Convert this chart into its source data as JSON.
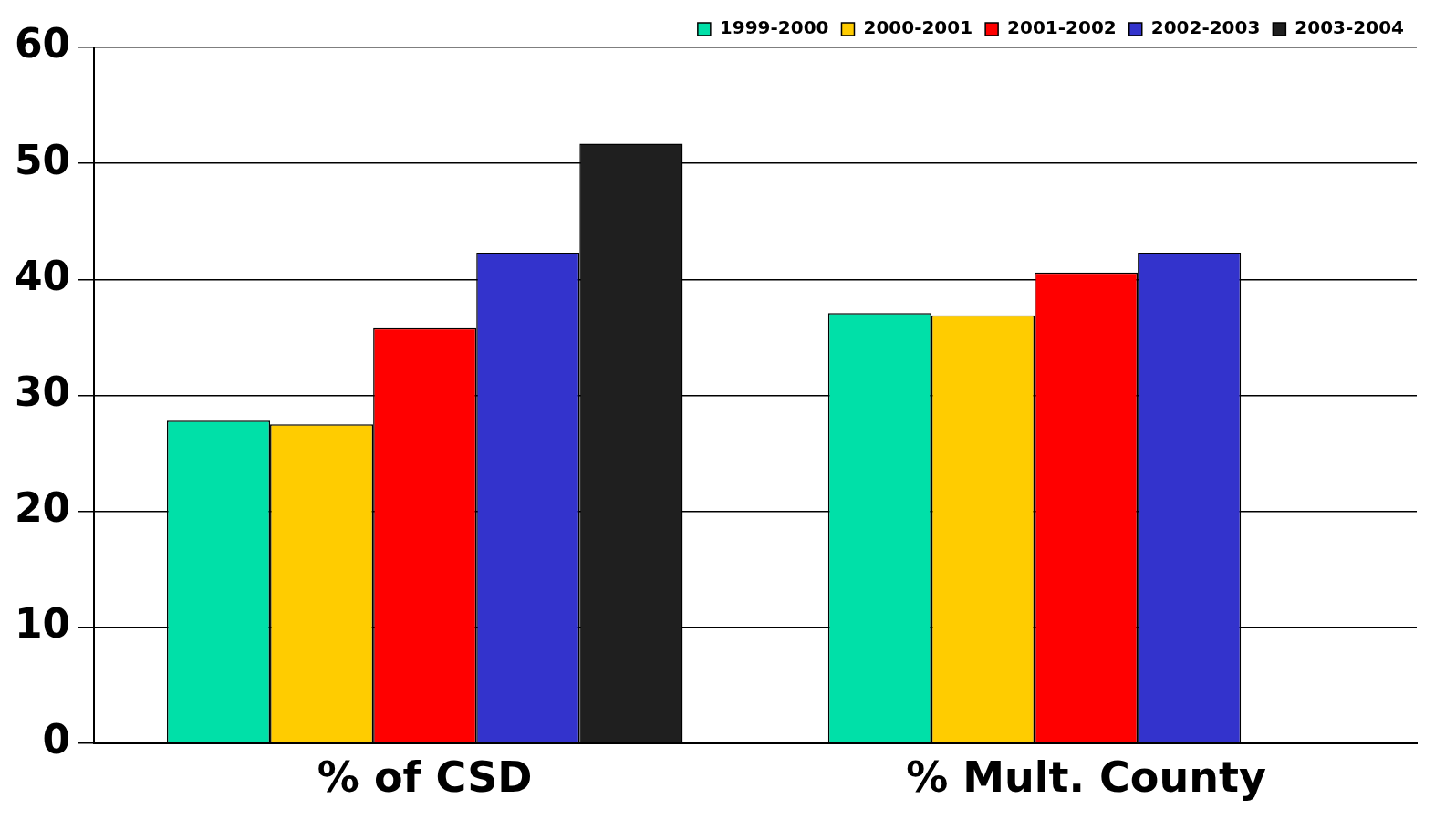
{
  "chart_data": {
    "type": "bar",
    "categories": [
      "% of CSD",
      "% Mult. County"
    ],
    "series": [
      {
        "name": "1999-2000",
        "color": "#00e0a8",
        "values": [
          27.8,
          37.1
        ]
      },
      {
        "name": "2000-2001",
        "color": "#ffcc00",
        "values": [
          27.5,
          36.9
        ]
      },
      {
        "name": "2001-2002",
        "color": "#ff0000",
        "values": [
          35.8,
          40.6
        ]
      },
      {
        "name": "2002-2003",
        "color": "#3333cc",
        "values": [
          42.3,
          42.3
        ]
      },
      {
        "name": "2003-2004",
        "color": "#1f1f1f",
        "values": [
          51.7,
          null
        ]
      }
    ],
    "ylim": [
      0,
      60
    ],
    "yticks": [
      0,
      10,
      20,
      30,
      40,
      50,
      60
    ],
    "grid": "y",
    "legend": "top right"
  }
}
